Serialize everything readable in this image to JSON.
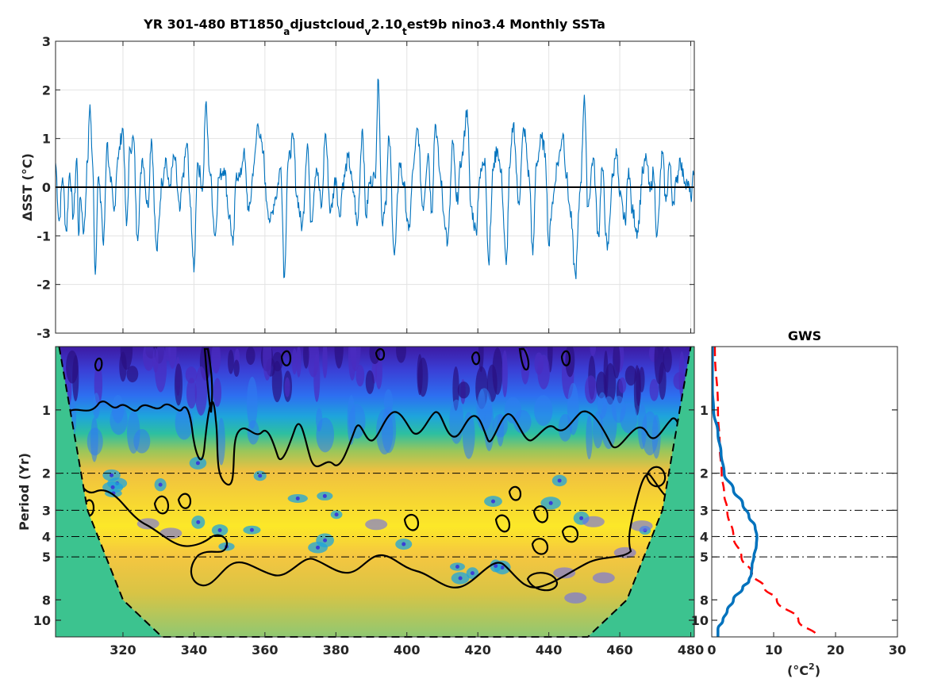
{
  "chart_data": [
    {
      "type": "line",
      "title_parts": [
        "YR 301-480 BT1850",
        "a",
        "djustcloud",
        "v",
        "2.10",
        "t",
        "est9b nino3.4 Monthly SSTa"
      ],
      "ylabel": "ΔSST (°C)",
      "xlim": [
        301,
        481
      ],
      "ylim": [
        -3,
        3
      ],
      "yticks": [
        "3",
        "2",
        "1",
        "0",
        "-1",
        "-2",
        "-3"
      ],
      "xtick_values": [
        320,
        340,
        360,
        380,
        400,
        420,
        440,
        460,
        480
      ],
      "grid": true,
      "series": [
        {
          "color": "#0072BD",
          "x": [
            301.0,
            302.0,
            303.0,
            304.0,
            305.0,
            306.0,
            307.0,
            307.5,
            308.0,
            309.0,
            310.0,
            310.7,
            311.5,
            312.2,
            313.0,
            313.8,
            314.5,
            315.5,
            316.5,
            317.5,
            318.5,
            320.0,
            321.0,
            322.0,
            323.0,
            324.0,
            325.5,
            327.0,
            328.0,
            329.5,
            331.0,
            332.0,
            333.0,
            334.5,
            336.0,
            337.0,
            338.0,
            339.0,
            340.0,
            341.0,
            342.5,
            343.3,
            344.5,
            346.0,
            347.0,
            348.5,
            350.0,
            351.0,
            352.0,
            353.0,
            354.0,
            355.5,
            357.0,
            358.0,
            359.5,
            360.5,
            361.5,
            363.0,
            364.5,
            365.5,
            366.5,
            368.0,
            369.0,
            370.5,
            372.0,
            373.0,
            374.5,
            376.0,
            377.0,
            378.5,
            380.0,
            381.0,
            382.0,
            383.5,
            385.0,
            386.0,
            387.5,
            388.5,
            389.5,
            391.0,
            392.0,
            393.0,
            394.0,
            395.0,
            396.5,
            398.0,
            399.0,
            400.5,
            402.0,
            403.0,
            404.5,
            406.0,
            407.0,
            408.0,
            409.5,
            410.5,
            411.5,
            413.0,
            414.0,
            415.5,
            417.0,
            418.0,
            419.5,
            420.5,
            422.0,
            423.0,
            424.5,
            425.5,
            426.5,
            428.0,
            429.0,
            430.0,
            431.5,
            433.0,
            434.5,
            435.5,
            436.5,
            438.0,
            439.0,
            440.0,
            441.0,
            442.5,
            444.0,
            445.0,
            446.0,
            447.5,
            449.0,
            450.0,
            451.0,
            452.5,
            454.0,
            455.0,
            456.5,
            458.0,
            459.0,
            460.0,
            461.5,
            462.5,
            463.5,
            465.0,
            466.5,
            467.5,
            468.5,
            469.5,
            470.5,
            472.0,
            473.0,
            474.0,
            475.0,
            476.0,
            477.0,
            478.0,
            479.0,
            480.0,
            481.0
          ],
          "y": [
            0.5,
            -0.7,
            0.2,
            -0.9,
            0.3,
            -0.6,
            0.6,
            -1.0,
            -0.2,
            -0.9,
            0.5,
            1.7,
            0.4,
            -1.8,
            0.2,
            -0.3,
            -1.2,
            0.9,
            0.1,
            -0.5,
            0.6,
            1.2,
            -0.8,
            0.8,
            1.0,
            -1.0,
            0.6,
            -0.4,
            1.0,
            -1.3,
            0.1,
            0.6,
            0.0,
            0.6,
            -0.5,
            0.3,
            0.9,
            -0.4,
            -1.75,
            0.5,
            0.0,
            1.7,
            0.3,
            -1.0,
            0.2,
            0.4,
            -0.6,
            -1.2,
            0.3,
            0.2,
            0.7,
            -0.5,
            0.5,
            1.3,
            0.7,
            -0.3,
            -0.7,
            -0.2,
            0.4,
            -1.85,
            0.5,
            1.0,
            -0.2,
            -0.8,
            0.9,
            -0.7,
            0.4,
            -0.4,
            1.1,
            -0.5,
            0.2,
            -0.6,
            0.1,
            0.6,
            -0.1,
            -0.8,
            1.2,
            -0.6,
            0.1,
            0.2,
            2.2,
            -0.7,
            -0.3,
            1.0,
            -1.4,
            0.5,
            0.1,
            -0.9,
            0.5,
            1.2,
            -0.4,
            0.7,
            -0.5,
            1.3,
            0.2,
            -0.6,
            -1.15,
            0.9,
            -0.3,
            0.6,
            1.6,
            -0.4,
            -0.9,
            0.2,
            0.6,
            -1.5,
            0.5,
            0.8,
            0.3,
            -1.6,
            0.4,
            1.3,
            -0.3,
            1.2,
            0.2,
            -1.4,
            0.5,
            1.0,
            0.7,
            -1.2,
            -0.3,
            0.5,
            1.1,
            0.2,
            -0.5,
            -1.8,
            0.1,
            1.9,
            -0.4,
            0.6,
            -1.0,
            0.4,
            -1.3,
            0.2,
            0.8,
            -0.2,
            -0.7,
            0.4,
            -0.5,
            -0.9,
            0.3,
            0.6,
            -0.1,
            0.3,
            -1.0,
            0.7,
            -0.3,
            0.5,
            -0.3,
            0.1,
            0.6,
            0.2,
            0.1,
            -0.2,
            0.3
          ]
        }
      ]
    },
    {
      "type": "heatmap",
      "ylabel": "Period (Yr)",
      "xlim": [
        301,
        481
      ],
      "yscale": "log",
      "ylim": [
        0.5,
        12
      ],
      "yticks": [
        1,
        2,
        3,
        4,
        5,
        8,
        10
      ],
      "ytick_labels": [
        "1",
        "2",
        "3",
        "4",
        "5",
        "8",
        "10"
      ],
      "reference_periods": [
        2,
        3,
        4,
        5
      ],
      "xticks": [
        "320",
        "340",
        "360",
        "380",
        "400",
        "420",
        "440",
        "460",
        "480"
      ],
      "xtick_values": [
        320,
        340,
        360,
        380,
        400,
        420,
        440,
        460,
        480
      ],
      "cone_of_influence": {
        "x": [
          302,
          310,
          320,
          331,
          391,
          451,
          462,
          472,
          480
        ],
        "period": [
          0.5,
          3,
          8,
          12,
          12,
          12,
          8,
          3,
          0.5
        ]
      }
    },
    {
      "type": "line",
      "title": "GWS",
      "xlabel": "(°C²)",
      "xlim": [
        0,
        30
      ],
      "yscale": "log",
      "ylim": [
        0.5,
        12
      ],
      "xticks": [
        "0",
        "10",
        "20",
        "30"
      ],
      "yticks": [
        1,
        2,
        3,
        4,
        5,
        8,
        10
      ],
      "ytick_labels": [
        "1",
        "2",
        "3",
        "4",
        "5",
        "8",
        "10"
      ],
      "reference_periods": [
        2,
        3,
        4,
        5
      ],
      "series": [
        {
          "color": "#0072BD",
          "period": [
            0.5,
            0.8,
            1.0,
            1.3,
            1.6,
            2.0,
            2.4,
            2.8,
            3.2,
            3.6,
            4.0,
            4.4,
            5.0,
            5.5,
            6.0,
            6.5,
            7.0,
            8.0,
            9.0,
            10.0,
            11.0,
            12.0
          ],
          "power": [
            0.1,
            0.1,
            0.3,
            1.0,
            1.5,
            2.0,
            3.5,
            5.0,
            6.0,
            7.0,
            7.3,
            7.2,
            6.8,
            6.5,
            6.4,
            6.0,
            5.0,
            3.5,
            2.5,
            1.8,
            1.0,
            1.0
          ]
        },
        {
          "color": "#FF0000",
          "dash": true,
          "period": [
            0.5,
            1.0,
            1.5,
            2.0,
            2.5,
            3.0,
            4.0,
            5.0,
            6.0,
            7.0,
            8.0,
            10.0,
            12.0
          ],
          "power": [
            0.5,
            1.0,
            1.3,
            1.6,
            2.0,
            2.5,
            3.5,
            4.8,
            6.5,
            8.5,
            10.5,
            14.0,
            17.0
          ]
        }
      ]
    }
  ]
}
